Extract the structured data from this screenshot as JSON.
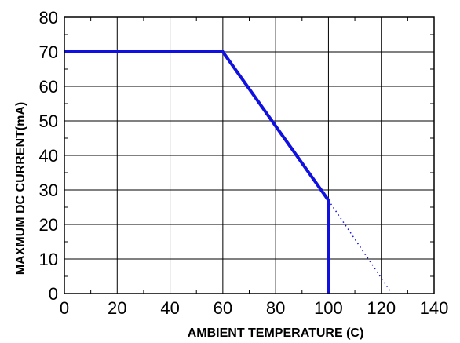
{
  "chart_data": {
    "type": "line",
    "xlabel": "AMBIENT TEMPERATURE (C)",
    "ylabel": "MAXMUM DC CURRENT(mA)",
    "xlim": [
      0,
      140
    ],
    "ylim": [
      0,
      80
    ],
    "x_ticks": [
      0,
      20,
      40,
      60,
      80,
      100,
      120,
      140
    ],
    "y_ticks": [
      0,
      10,
      20,
      30,
      40,
      50,
      60,
      70,
      80
    ],
    "grid": true,
    "series": [
      {
        "style": "solid",
        "color": "#1010e0",
        "points": [
          [
            0,
            70
          ],
          [
            60,
            70
          ],
          [
            100,
            27
          ],
          [
            100,
            0
          ]
        ]
      },
      {
        "style": "dotted",
        "color": "#1010e0",
        "points": [
          [
            100,
            27
          ],
          [
            124,
            0
          ]
        ]
      }
    ]
  }
}
